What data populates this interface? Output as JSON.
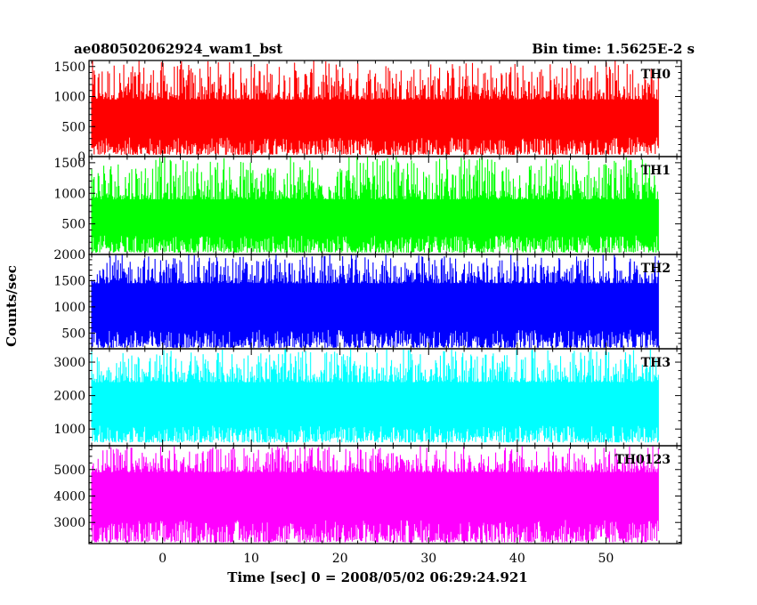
{
  "header": {
    "title": "ae080502062924_wam1_bst",
    "bin_time": "Bin time: 1.5625E-2 s"
  },
  "chart_data": {
    "type": "line",
    "xlabel": "Time [sec] 0 = 2008/05/02 06:29:24.921",
    "ylabel": "Counts/sec",
    "xlim": [
      -8.3,
      58.5
    ],
    "data_x_range": [
      -8.0,
      56.0
    ],
    "x_ticks": [
      0,
      10,
      20,
      30,
      40,
      50
    ],
    "x_tick_labels": [
      "0",
      "10",
      "20",
      "30",
      "40",
      "50"
    ],
    "panels": [
      {
        "name": "TH0",
        "color": "#ff0000",
        "ylim": [
          0,
          1600
        ],
        "y_ticks": [
          0,
          500,
          1000,
          1500
        ],
        "y_tick_labels": [
          "0",
          "500",
          "1000",
          "1500"
        ],
        "band_low": [
          30,
          320
        ],
        "band_high": [
          950,
          1600
        ]
      },
      {
        "name": "TH1",
        "color": "#00ff00",
        "ylim": [
          0,
          1600
        ],
        "y_ticks": [
          500,
          1000,
          1500
        ],
        "y_tick_labels": [
          "500",
          "1000",
          "1500"
        ],
        "band_low": [
          30,
          310
        ],
        "band_high": [
          900,
          1600
        ]
      },
      {
        "name": "TH2",
        "color": "#0000ff",
        "ylim": [
          200,
          2000
        ],
        "y_ticks": [
          500,
          1000,
          1500,
          2000
        ],
        "y_tick_labels": [
          "500",
          "1000",
          "1500",
          "2000"
        ],
        "band_low": [
          220,
          560
        ],
        "band_high": [
          1450,
          2000
        ]
      },
      {
        "name": "TH3",
        "color": "#00ffff",
        "ylim": [
          500,
          3400
        ],
        "y_ticks": [
          1000,
          2000,
          3000
        ],
        "y_tick_labels": [
          "1000",
          "2000",
          "3000"
        ],
        "band_low": [
          600,
          1100
        ],
        "band_high": [
          2400,
          3400
        ]
      },
      {
        "name": "TH0123",
        "color": "#ff00ff",
        "ylim": [
          2200,
          5900
        ],
        "y_ticks": [
          3000,
          4000,
          5000
        ],
        "y_tick_labels": [
          "3000",
          "4000",
          "5000"
        ],
        "band_low": [
          2250,
          3100
        ],
        "band_high": [
          4900,
          5900
        ]
      }
    ]
  }
}
